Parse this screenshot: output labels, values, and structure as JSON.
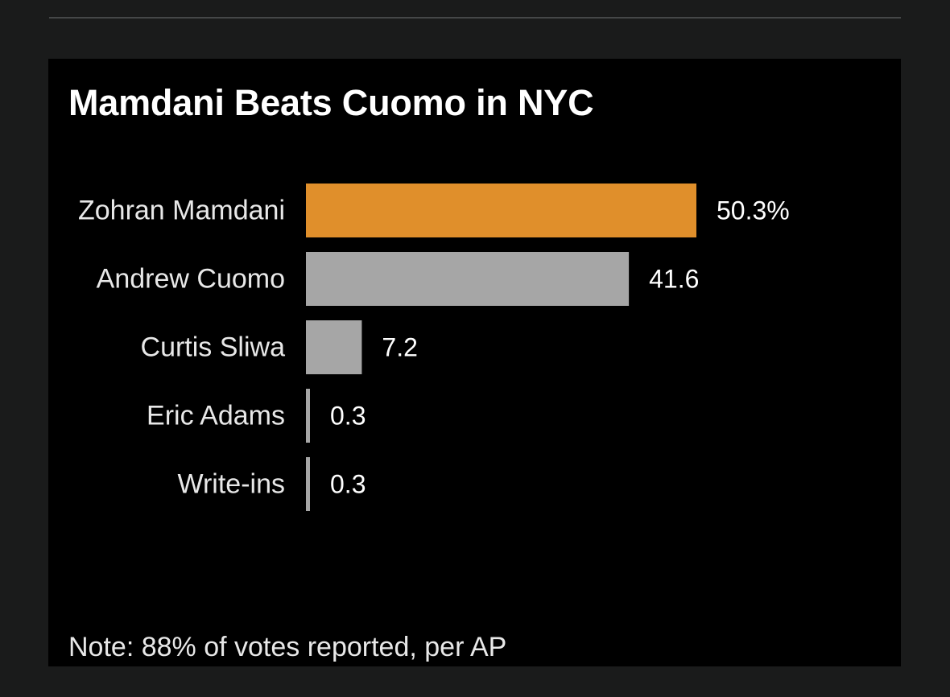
{
  "chart_data": {
    "type": "bar",
    "orientation": "horizontal",
    "title": "Mamdani Beats Cuomo in NYC",
    "categories": [
      "Zohran Mamdani",
      "Andrew Cuomo",
      "Curtis Sliwa",
      "Eric Adams",
      "Write-ins"
    ],
    "values": [
      50.3,
      41.6,
      7.2,
      0.3,
      0.3
    ],
    "value_labels": [
      "50.3%",
      "41.6",
      "7.2",
      "0.3",
      "0.3"
    ],
    "colors": [
      "#e08f2b",
      "#a6a6a6",
      "#a6a6a6",
      "#a6a6a6",
      "#a6a6a6"
    ],
    "xlim": [
      0,
      50.3
    ],
    "grid": false,
    "legend": "none",
    "note": "Note: 88% of votes reported, per AP"
  }
}
